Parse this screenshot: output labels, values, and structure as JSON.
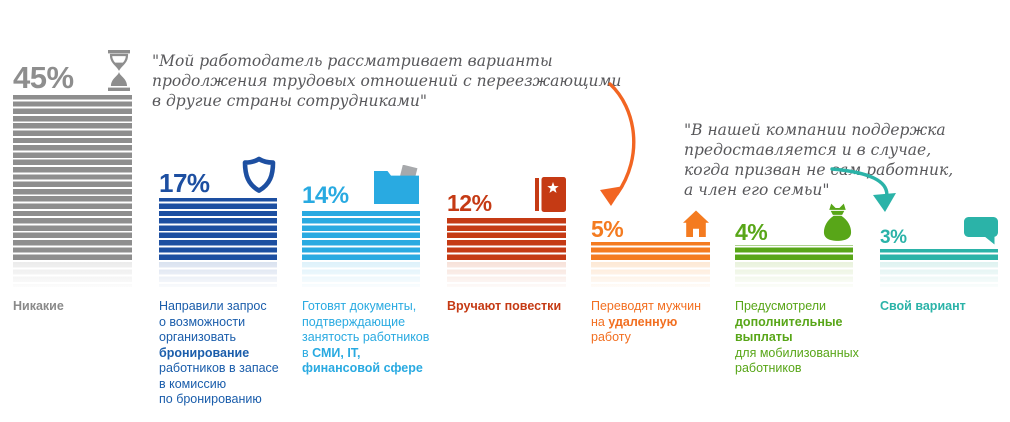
{
  "annotations": [
    {
      "text": "\"Мой работодатель рассматривает варианты\nпродолжения трудовых отношений с переезжающими\nв другие страны сотрудниками\"",
      "arrow_color": "#f26522",
      "points_to": "5%"
    },
    {
      "text": "\"В нашей компании поддержка\nпредоставляется и в случае,\nкогда призван не сам работник,\nа член его семьи\"",
      "arrow_color": "#2bb3a8",
      "points_to": "3%"
    }
  ],
  "bars": [
    {
      "value": "45%",
      "number": 45,
      "color": "#8e8e8e",
      "light": "#e9e9e9",
      "label_color": "#8a8a8a",
      "icon": "hourglass-icon",
      "caption": [
        {
          "t": "Никакие"
        }
      ]
    },
    {
      "value": "17%",
      "number": 17,
      "color": "#1d4fa1",
      "light": "#d6dfee",
      "label_color": "#1a5dab",
      "icon": "shield-icon",
      "caption": [
        {
          "t": "Направили запрос\nо возможности\nорганизовать\n"
        },
        {
          "t": "бронирование"
        },
        {
          "t": "\nработников в запасе\nв комиссию\nпо бронированию"
        }
      ]
    },
    {
      "value": "14%",
      "number": 14,
      "color": "#29aae1",
      "light": "#daf0fa",
      "label_color": "#29aae1",
      "icon": "folder-documents-icon",
      "caption": [
        {
          "t": "Готовят документы,\nподтверждающие\nзанятость работников\nв "
        },
        {
          "t": "СМИ, IT,\nфинансовой сфере"
        }
      ]
    },
    {
      "value": "12%",
      "number": 12,
      "color": "#c53a14",
      "light": "#f6ded5",
      "label_color": "#c53a14",
      "icon": "draft-notice-book-icon",
      "caption": [
        {
          "t": "Вручают повестки"
        }
      ]
    },
    {
      "value": "5%",
      "number": 5,
      "color": "#f47b20",
      "light": "#fde6d0",
      "label_color": "#f26f21",
      "icon": "house-icon",
      "caption": [
        {
          "t": "Переводят мужчин\nна "
        },
        {
          "t": "удаленную"
        },
        {
          "t": "\nработу"
        }
      ]
    },
    {
      "value": "4%",
      "number": 4,
      "color": "#58a618",
      "light": "#e7f1d9",
      "label_color": "#58a618",
      "icon": "money-bag-icon",
      "caption": [
        {
          "t": "Предусмотрели\n"
        },
        {
          "t": "дополнительные\nвыплаты"
        },
        {
          "t": "\nдля мобилизованных\nработников"
        }
      ]
    },
    {
      "value": "3%",
      "number": 3,
      "color": "#2bb3a8",
      "light": "#dbf1ef",
      "label_color": "#2bb3a8",
      "icon": "speech-bubble-icon",
      "caption": [
        {
          "t": "Свой вариант"
        }
      ]
    }
  ],
  "chart_data": {
    "type": "bar",
    "unit": "%",
    "categories": [
      "Никакие",
      "Направили запрос о возможности организовать бронирование работников в запасе в комиссию по бронированию",
      "Готовят документы, подтверждающие занятость работников в СМИ, IT, финансовой сфере",
      "Вручают повестки",
      "Переводят мужчин на удаленную работу",
      "Предусмотрели дополнительные выплаты для мобилизованных работников",
      "Свой вариант"
    ],
    "values": [
      45,
      17,
      14,
      12,
      5,
      4,
      3
    ],
    "ylim": [
      0,
      45
    ],
    "annotations": [
      "Мой работодатель рассматривает варианты продолжения трудовых отношений с переезжающими в другие страны сотрудниками",
      "В нашей компании поддержка предоставляется и в случае, когда призван не сам работник, а член его семьи"
    ],
    "legend": "none",
    "grid": false
  }
}
